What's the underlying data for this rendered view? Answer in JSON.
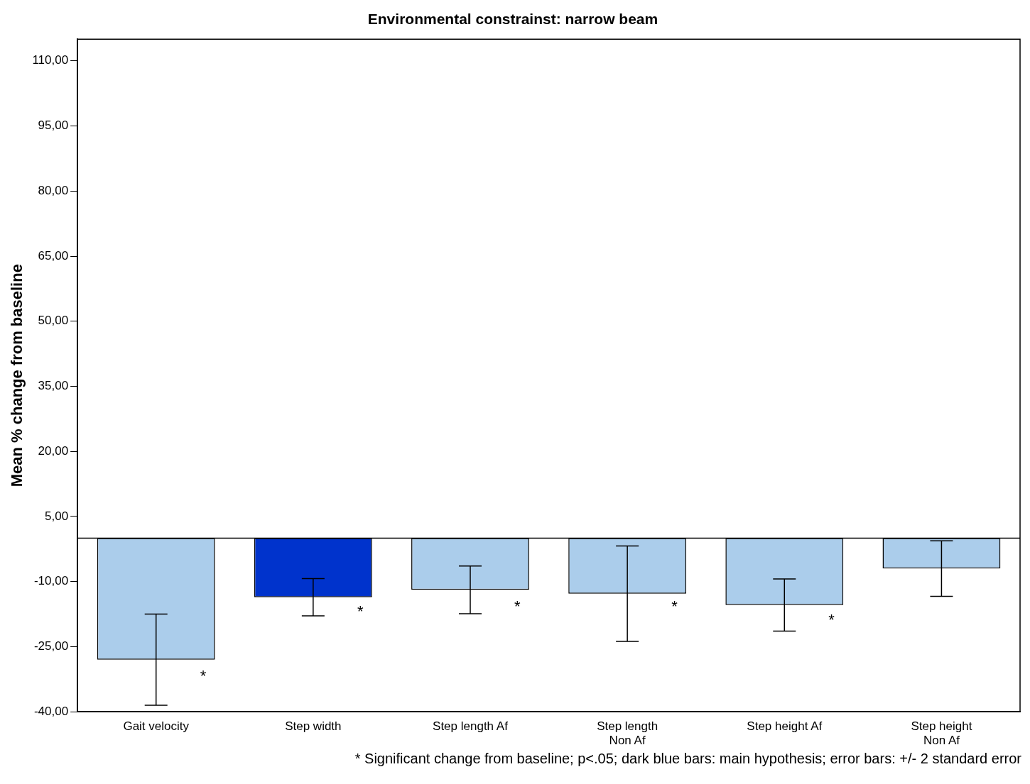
{
  "chart_data": {
    "type": "bar",
    "title": "Environmental constrainst: narrow beam",
    "ylabel": "Mean % change from baseline",
    "categories": [
      "Gait velocity",
      "Step width",
      "Step length Af",
      "Step length Non Af",
      "Step height Af",
      "Step height Non Af"
    ],
    "values": [
      -28.0,
      -13.6,
      -11.9,
      -12.8,
      -15.4,
      -7.0
    ],
    "colors": [
      "#abcdeb",
      "#0033cc",
      "#abcdeb",
      "#abcdeb",
      "#abcdeb",
      "#abcdeb"
    ],
    "errors": [
      10.5,
      4.3,
      5.5,
      11.0,
      6.0,
      6.4
    ],
    "ylim": [
      -40,
      115
    ],
    "yticks": [
      {
        "value": -40,
        "label": "-40,00"
      },
      {
        "value": -25,
        "label": "-25,00"
      },
      {
        "value": -10,
        "label": "-10,00"
      },
      {
        "value": 5,
        "label": "5,00"
      },
      {
        "value": 20,
        "label": "20,00"
      },
      {
        "value": 35,
        "label": "35,00"
      },
      {
        "value": 50,
        "label": "50,00"
      },
      {
        "value": 65,
        "label": "65,00"
      },
      {
        "value": 80,
        "label": "80,00"
      },
      {
        "value": 95,
        "label": "95,00"
      },
      {
        "value": 110,
        "label": "110,00"
      }
    ],
    "ref_lines": [
      {
        "axis": "y",
        "value": 0,
        "color": "#000000"
      }
    ],
    "grid": false,
    "legend": false,
    "annotations": [
      {
        "text": "*",
        "x": "Gait velocity",
        "y": -32
      },
      {
        "text": "*",
        "x": "Step width",
        "y": -17
      },
      {
        "text": "*",
        "x": "Step length Af",
        "y": -16
      },
      {
        "text": "*",
        "x": "Step length Non Af",
        "y": -16
      },
      {
        "text": "*",
        "x": "Step height Af",
        "y": -19
      },
      "* Significant change from baseline; p<.05; dark blue bars: main hypothesis; error bars: +/- 2 standard error"
    ]
  }
}
